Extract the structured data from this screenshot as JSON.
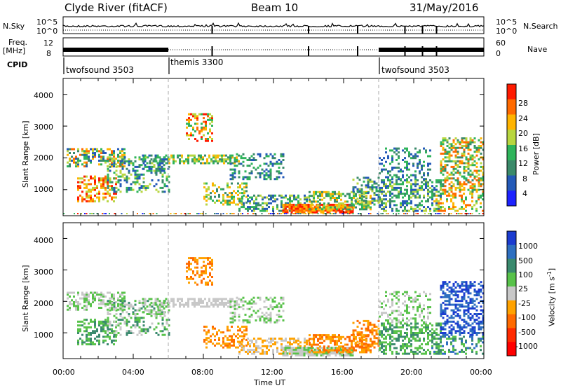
{
  "header": {
    "title": "Clyde River (fitACF)",
    "beam": "Beam 10",
    "date": "31/May/2016"
  },
  "strip1": {
    "left_label": "N.Sky",
    "left_ticks": [
      "10^5",
      "10^0"
    ],
    "right_ticks": [
      "10^5",
      "10^0"
    ],
    "right_label": "N.Search"
  },
  "strip2": {
    "left_label_1": "Freq.",
    "left_label_2": "[MHz]",
    "left_ticks": [
      "12",
      "8"
    ],
    "right_ticks": [
      "60",
      "0"
    ],
    "right_label": "Nave"
  },
  "cpid": {
    "label": "CPID",
    "segments": [
      {
        "name": "twofsound 3503",
        "start_hour": 0
      },
      {
        "name": "themis 3300",
        "start_hour": 6
      },
      {
        "name": "twofsound 3503",
        "start_hour": 18
      }
    ]
  },
  "chart_data": [
    {
      "type": "heatmap",
      "title": "",
      "ylabel": "Slant Range [km]",
      "yticks": [
        "1000",
        "2000",
        "3000",
        "4000"
      ],
      "ylim": [
        180,
        4500
      ],
      "colorbar": {
        "label": "Power [dB]",
        "ticks": [
          "4",
          "8",
          "12",
          "16",
          "20",
          "24",
          "28"
        ],
        "colors": [
          "#1d22ff",
          "#245ab8",
          "#3b8a6a",
          "#2fb45b",
          "#b8d640",
          "#ffb400",
          "#ff6a00",
          "#ff1a00"
        ]
      }
    },
    {
      "type": "heatmap",
      "title": "",
      "ylabel": "Slant Range [km]",
      "yticks": [
        "1000",
        "2000",
        "3000",
        "4000"
      ],
      "ylim": [
        180,
        4500
      ],
      "xlabel": "Time UT",
      "xticks": [
        "00:00",
        "04:00",
        "08:00",
        "12:00",
        "16:00",
        "20:00",
        "00:00"
      ],
      "xlim_hours": [
        0,
        24
      ],
      "colorbar": {
        "label": "Velocity [m s-1]",
        "label_main": "Velocity",
        "label_unit": "[m s",
        "label_exp": "-1",
        "label_close": "]",
        "ticks": [
          "1000",
          "500",
          "100",
          "25",
          "-25",
          "-100",
          "-500",
          "-1000"
        ],
        "colors": [
          "#1b3cd0",
          "#2e6fc0",
          "#3a8a6e",
          "#58c24a",
          "#c8c8c8",
          "#ffa200",
          "#ff6a00",
          "#ff2a00",
          "#ff0000"
        ]
      }
    }
  ]
}
